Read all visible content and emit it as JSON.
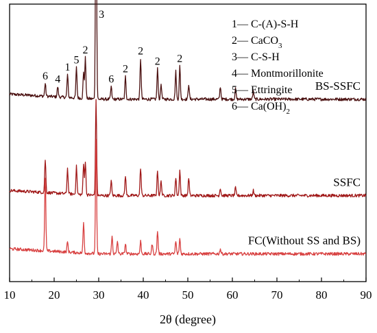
{
  "chart_data": {
    "type": "line",
    "xlabel": "2θ (degree)",
    "xlim": [
      10,
      90
    ],
    "x_ticks": [
      "10",
      "20",
      "30",
      "40",
      "50",
      "60",
      "70",
      "80",
      "90"
    ],
    "legend_placement": "top-right",
    "legend": [
      {
        "id": "1",
        "text": "1— C-(A)-S-H"
      },
      {
        "id": "2",
        "text": "2— CaCO",
        "sub": "3"
      },
      {
        "id": "3",
        "text": "3— C-S-H"
      },
      {
        "id": "4",
        "text": "4— Montmorillonite"
      },
      {
        "id": "5",
        "text": "5— Ettringite"
      },
      {
        "id": "6",
        "text": "6— Ca(OH)",
        "sub": "2"
      }
    ],
    "peak_labels": [
      {
        "text": "6",
        "x": 18.0
      },
      {
        "text": "4",
        "x": 20.8
      },
      {
        "text": "1",
        "x": 23.0
      },
      {
        "text": "5",
        "x": 25.0
      },
      {
        "text": "2",
        "x": 27.0
      },
      {
        "text": "3",
        "x": 29.4
      },
      {
        "text": "6",
        "x": 32.8
      },
      {
        "text": "2",
        "x": 36.0
      },
      {
        "text": "2",
        "x": 39.4
      },
      {
        "text": "2",
        "x": 43.2
      },
      {
        "text": "2",
        "x": 48.2
      }
    ],
    "series": [
      {
        "name": "BS-SSFC",
        "color": "#4a1010",
        "baseline": 0.66,
        "peaks": [
          [
            18.0,
            0.05
          ],
          [
            20.8,
            0.04
          ],
          [
            23.0,
            0.09
          ],
          [
            25.0,
            0.12
          ],
          [
            26.6,
            0.1
          ],
          [
            27.0,
            0.16
          ],
          [
            29.4,
            0.97
          ],
          [
            32.8,
            0.05
          ],
          [
            36.0,
            0.09
          ],
          [
            39.4,
            0.16
          ],
          [
            43.2,
            0.12
          ],
          [
            44.0,
            0.06
          ],
          [
            47.3,
            0.11
          ],
          [
            48.2,
            0.13
          ],
          [
            50.2,
            0.06
          ],
          [
            57.3,
            0.05
          ],
          [
            60.7,
            0.04
          ],
          [
            64.7,
            0.03
          ]
        ]
      },
      {
        "name": "SSFC",
        "color": "#a01818",
        "baseline": 0.28,
        "peaks": [
          [
            18.0,
            0.13
          ],
          [
            23.0,
            0.1
          ],
          [
            25.0,
            0.11
          ],
          [
            26.6,
            0.12
          ],
          [
            27.0,
            0.13
          ],
          [
            29.4,
            0.38
          ],
          [
            32.8,
            0.06
          ],
          [
            36.0,
            0.08
          ],
          [
            39.4,
            0.11
          ],
          [
            43.2,
            0.1
          ],
          [
            44.0,
            0.06
          ],
          [
            47.3,
            0.07
          ],
          [
            48.2,
            0.1
          ],
          [
            50.2,
            0.07
          ],
          [
            57.3,
            0.03
          ],
          [
            60.7,
            0.03
          ],
          [
            64.7,
            0.02
          ]
        ]
      },
      {
        "name": "FC(Without SS and BS)",
        "color": "#d84040",
        "baseline": 0.05,
        "peaks": [
          [
            18.0,
            0.29
          ],
          [
            23.0,
            0.04
          ],
          [
            26.6,
            0.12
          ],
          [
            29.4,
            0.45
          ],
          [
            33.0,
            0.07
          ],
          [
            34.2,
            0.05
          ],
          [
            36.0,
            0.04
          ],
          [
            39.4,
            0.05
          ],
          [
            42.0,
            0.04
          ],
          [
            43.2,
            0.09
          ],
          [
            47.3,
            0.05
          ],
          [
            48.2,
            0.06
          ],
          [
            57.3,
            0.02
          ]
        ]
      }
    ]
  }
}
